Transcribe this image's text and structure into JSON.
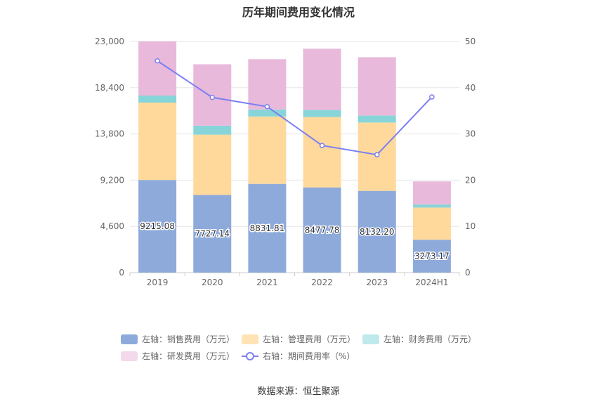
{
  "chart_data": {
    "type": "bar",
    "title": "历年期间费用变化情况",
    "categories": [
      "2019",
      "2020",
      "2021",
      "2022",
      "2023",
      "2024H1"
    ],
    "stacked": true,
    "left_axis": {
      "ticks": [
        "0",
        "4,600",
        "9,200",
        "13,800",
        "18,400",
        "23,000"
      ],
      "ylim": [
        0,
        23000
      ]
    },
    "right_axis": {
      "ticks": [
        "0",
        "10",
        "20",
        "30",
        "40",
        "50"
      ],
      "ylim": [
        0,
        50
      ]
    },
    "series": [
      {
        "name": "左轴：销售费用（万元）",
        "type": "bar",
        "axis": "left",
        "color": "#8eaadb",
        "values": [
          9215.08,
          7727.14,
          8831.81,
          8477.78,
          8132.2,
          3273.17
        ],
        "labels": [
          "9215.08",
          "7727.14",
          "8831.81",
          "8477.78",
          "8132.20",
          "3273.17"
        ]
      },
      {
        "name": "左轴：管理费用（万元）",
        "type": "bar",
        "axis": "left",
        "color": "#ffd99b",
        "values": [
          7700,
          6000,
          6700,
          7000,
          6800,
          3200
        ]
      },
      {
        "name": "左轴：财务费用（万元）",
        "type": "bar",
        "axis": "left",
        "color": "#87d5d8",
        "values": [
          700,
          900,
          700,
          700,
          700,
          300
        ]
      },
      {
        "name": "左轴：研发费用（万元）",
        "type": "bar",
        "axis": "left",
        "color": "#e8b9da",
        "values": [
          5400,
          6100,
          5000,
          6100,
          5800,
          2300
        ]
      },
      {
        "name": "右轴：期间费用率（%）",
        "type": "line",
        "axis": "right",
        "color": "#7b7ff0",
        "values": [
          45.8,
          37.9,
          35.9,
          27.5,
          25.5,
          38.0
        ]
      }
    ],
    "grid": true
  },
  "source": "数据来源：恒生聚源"
}
